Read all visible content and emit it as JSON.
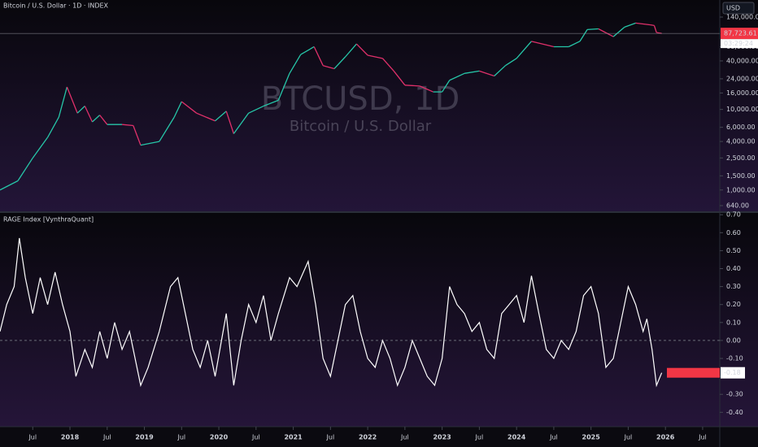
{
  "chart_data": [
    {
      "type": "line",
      "title": "Bitcoin / U.S. Dollar · 1D · INDEX",
      "watermark": "BTCUSD, 1D",
      "subtitle": "Bitcoin / U.S. Dollar",
      "currency": "USD",
      "log_scale": true,
      "up_color": "#26c6a8",
      "down_color": "#e0306a",
      "x": [
        2017.06,
        2017.3,
        2017.5,
        2017.7,
        2017.85,
        2017.96,
        2018.1,
        2018.2,
        2018.3,
        2018.4,
        2018.5,
        2018.7,
        2018.85,
        2018.95,
        2019.2,
        2019.4,
        2019.5,
        2019.7,
        2019.95,
        2020.1,
        2020.2,
        2020.4,
        2020.6,
        2020.8,
        2020.95,
        2021.1,
        2021.28,
        2021.4,
        2021.55,
        2021.7,
        2021.85,
        2022.0,
        2022.2,
        2022.35,
        2022.5,
        2022.7,
        2022.88,
        2023.0,
        2023.1,
        2023.3,
        2023.5,
        2023.7,
        2023.85,
        2024.0,
        2024.2,
        2024.5,
        2024.7,
        2024.85,
        2024.95,
        2025.1,
        2025.3,
        2025.45,
        2025.6,
        2025.8,
        2025.85,
        2025.88,
        2025.95
      ],
      "values": [
        1000,
        1300,
        2500,
        4500,
        8000,
        19000,
        9000,
        11000,
        7000,
        8500,
        6500,
        6500,
        6300,
        3600,
        4000,
        8000,
        12500,
        9000,
        7200,
        9500,
        5000,
        9000,
        11000,
        13000,
        28000,
        48000,
        60000,
        35000,
        32000,
        45000,
        65000,
        47000,
        43000,
        30000,
        20000,
        19500,
        16500,
        16500,
        23000,
        28000,
        30000,
        26000,
        35000,
        43000,
        70000,
        60000,
        60000,
        70000,
        98000,
        100000,
        80000,
        105000,
        118000,
        112000,
        110000,
        90000,
        87723.61
      ],
      "last_value": 87723.61,
      "last_value_label": "87,723.61",
      "countdown": "03:29:24",
      "xlim": [
        2017.06,
        2026.73
      ],
      "ylim": [
        544,
        228000
      ],
      "yticks": [
        {
          "value": 140000,
          "label": "140,000.00"
        },
        {
          "value": 60000,
          "label": "60,000.00"
        },
        {
          "value": 40000,
          "label": "40,000.00"
        },
        {
          "value": 24000,
          "label": "24,000.00"
        },
        {
          "value": 16000,
          "label": "16,000.00"
        },
        {
          "value": 10000,
          "label": "10,000.00"
        },
        {
          "value": 6000,
          "label": "6,000.00"
        },
        {
          "value": 4000,
          "label": "4,000.00"
        },
        {
          "value": 2500,
          "label": "2,500.00"
        },
        {
          "value": 1500,
          "label": "1,500.00"
        },
        {
          "value": 1000,
          "label": "1,000.00"
        },
        {
          "value": 640,
          "label": "640.00"
        }
      ]
    },
    {
      "type": "line",
      "title": "RAGE Index [VynthraQuant]",
      "color": "#ffffff",
      "x": [
        2017.06,
        2017.15,
        2017.25,
        2017.32,
        2017.4,
        2017.5,
        2017.6,
        2017.7,
        2017.8,
        2017.9,
        2018.0,
        2018.08,
        2018.2,
        2018.3,
        2018.4,
        2018.5,
        2018.6,
        2018.7,
        2018.8,
        2018.95,
        2019.05,
        2019.2,
        2019.35,
        2019.45,
        2019.55,
        2019.65,
        2019.75,
        2019.85,
        2019.95,
        2020.1,
        2020.2,
        2020.3,
        2020.4,
        2020.5,
        2020.6,
        2020.7,
        2020.8,
        2020.95,
        2021.05,
        2021.2,
        2021.3,
        2021.4,
        2021.5,
        2021.6,
        2021.7,
        2021.8,
        2021.9,
        2022.0,
        2022.1,
        2022.2,
        2022.3,
        2022.4,
        2022.5,
        2022.6,
        2022.7,
        2022.8,
        2022.9,
        2023.0,
        2023.1,
        2023.2,
        2023.3,
        2023.4,
        2023.5,
        2023.6,
        2023.7,
        2023.8,
        2023.9,
        2024.0,
        2024.1,
        2024.2,
        2024.3,
        2024.4,
        2024.5,
        2024.6,
        2024.7,
        2024.8,
        2024.9,
        2025.0,
        2025.1,
        2025.2,
        2025.3,
        2025.4,
        2025.5,
        2025.6,
        2025.7,
        2025.75,
        2025.82,
        2025.88,
        2025.95
      ],
      "values": [
        0.05,
        0.2,
        0.3,
        0.57,
        0.35,
        0.15,
        0.35,
        0.2,
        0.38,
        0.2,
        0.05,
        -0.2,
        -0.05,
        -0.15,
        0.05,
        -0.1,
        0.1,
        -0.05,
        0.05,
        -0.25,
        -0.15,
        0.05,
        0.3,
        0.35,
        0.15,
        -0.05,
        -0.15,
        0.0,
        -0.2,
        0.15,
        -0.25,
        0.0,
        0.2,
        0.1,
        0.25,
        0.0,
        0.15,
        0.35,
        0.3,
        0.44,
        0.2,
        -0.1,
        -0.2,
        0.0,
        0.2,
        0.25,
        0.05,
        -0.1,
        -0.15,
        0.0,
        -0.1,
        -0.25,
        -0.15,
        0.0,
        -0.1,
        -0.2,
        -0.25,
        -0.1,
        0.3,
        0.2,
        0.15,
        0.05,
        0.1,
        -0.05,
        -0.1,
        0.15,
        0.2,
        0.25,
        0.1,
        0.36,
        0.15,
        -0.05,
        -0.1,
        0.0,
        -0.05,
        0.05,
        0.25,
        0.3,
        0.15,
        -0.15,
        -0.1,
        0.1,
        0.3,
        0.2,
        0.05,
        0.12,
        -0.05,
        -0.25,
        -0.18
      ],
      "last_value": -0.18,
      "zero_line": 0,
      "xlim": [
        2017.06,
        2026.73
      ],
      "ylim": [
        -0.48,
        0.71
      ],
      "yticks": [
        {
          "value": 0.7,
          "label": "0.70"
        },
        {
          "value": 0.6,
          "label": "0.60"
        },
        {
          "value": 0.5,
          "label": "0.50"
        },
        {
          "value": 0.4,
          "label": "0.40"
        },
        {
          "value": 0.3,
          "label": "0.30"
        },
        {
          "value": 0.2,
          "label": "0.20"
        },
        {
          "value": 0.1,
          "label": "0.10"
        },
        {
          "value": 0,
          "label": "0.00"
        },
        {
          "value": -0.1,
          "label": "-0.10"
        },
        {
          "value": -0.2,
          "label": "-0.20"
        },
        {
          "value": -0.3,
          "label": "-0.30"
        },
        {
          "value": -0.4,
          "label": "-0.40"
        }
      ],
      "xticks": [
        {
          "value": 2017.5,
          "label": "Jul"
        },
        2018,
        {
          "value": 2018.5,
          "label": "Jul"
        },
        2019,
        {
          "value": 2019.5,
          "label": "Jul"
        },
        2020,
        {
          "value": 2020.5,
          "label": "Jul"
        },
        2021,
        {
          "value": 2021.5,
          "label": "Jul"
        },
        2022,
        {
          "value": 2022.5,
          "label": "Jul"
        },
        2023,
        {
          "value": 2023.5,
          "label": "Jul"
        },
        2024,
        {
          "value": 2024.5,
          "label": "Jul"
        },
        2025,
        {
          "value": 2025.5,
          "label": "Jul"
        },
        2026,
        {
          "value": 2026.5,
          "label": "Jul"
        }
      ]
    }
  ]
}
